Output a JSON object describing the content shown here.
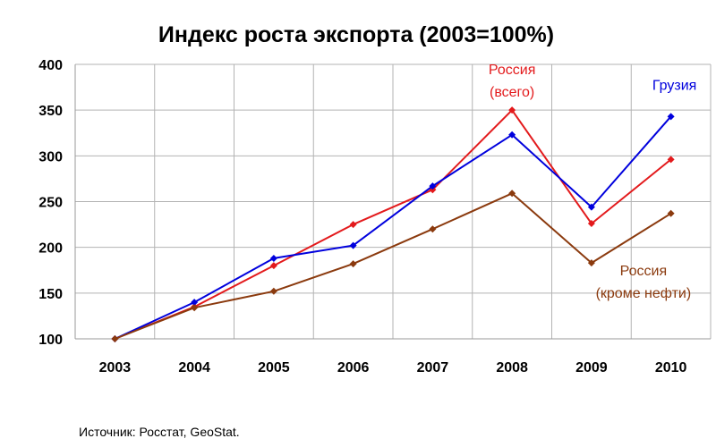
{
  "chart_data": {
    "type": "line",
    "title": "Индекс роста экспорта (2003=100%)",
    "xlabel": "",
    "ylabel": "",
    "categories": [
      "2003",
      "2004",
      "2005",
      "2006",
      "2007",
      "2008",
      "2009",
      "2010"
    ],
    "ylim": [
      100,
      400
    ],
    "yticks": [
      100,
      150,
      200,
      250,
      300,
      350,
      400
    ],
    "grid": true,
    "legend": "none",
    "series": [
      {
        "name": "Россия (всего)",
        "color": "#e31a1c",
        "values": [
          100,
          135,
          180,
          225,
          263,
          350,
          226,
          296
        ]
      },
      {
        "name": "Грузия",
        "color": "#0000dd",
        "values": [
          100,
          140,
          188,
          202,
          267,
          323,
          244,
          343
        ]
      },
      {
        "name": "Россия (кроме нефти)",
        "color": "#8b3a0e",
        "values": [
          100,
          134,
          152,
          182,
          220,
          259,
          183,
          237
        ]
      }
    ],
    "annotations": [
      {
        "lines": [
          "Россия",
          "(всего)"
        ],
        "series": 0,
        "color": "#e31a1c"
      },
      {
        "lines": [
          "Грузия"
        ],
        "series": 1,
        "color": "#0000dd"
      },
      {
        "lines": [
          "Россия",
          "(кроме нефти)"
        ],
        "series": 2,
        "color": "#8b3a0e"
      }
    ]
  },
  "source": "Источник: Росстат, GeoStat."
}
